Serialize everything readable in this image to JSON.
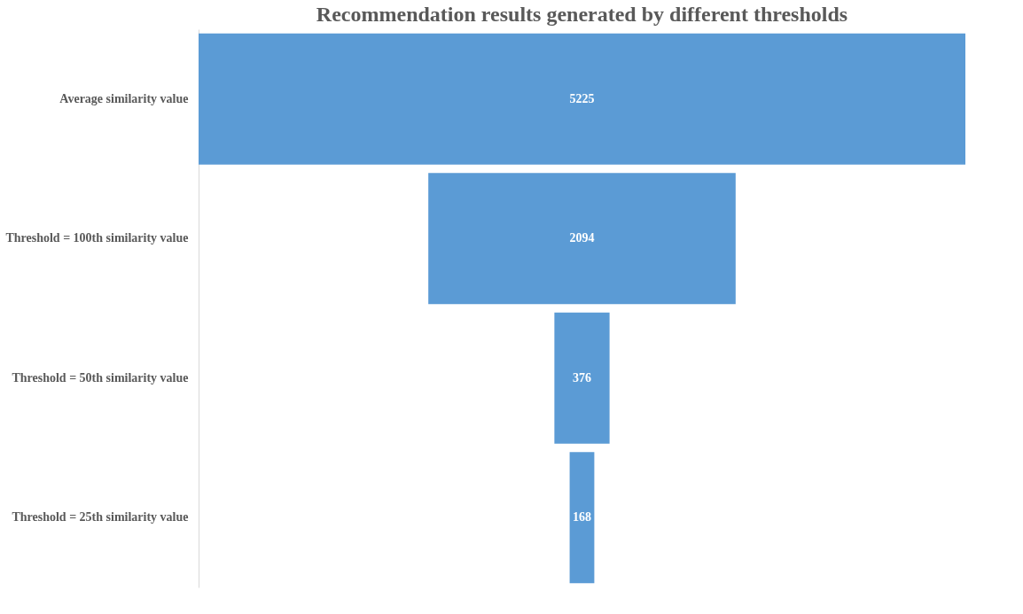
{
  "chart_data": {
    "type": "other",
    "title": "Recommendation results generated by different thresholds",
    "categories": [
      "Average similarity value",
      "Threshold = 100th similarity value",
      "Threshold = 50th similarity value",
      "Threshold = 25th similarity value"
    ],
    "values": [
      5225,
      2094,
      376,
      168
    ],
    "color": "#5b9bd5",
    "data_labels": true
  }
}
